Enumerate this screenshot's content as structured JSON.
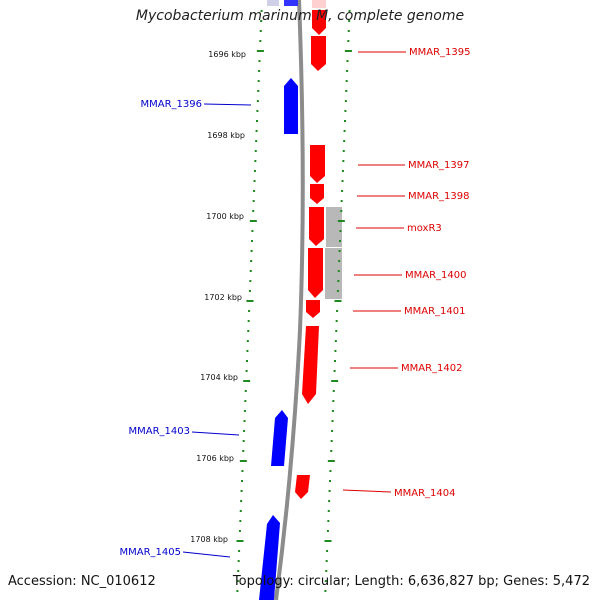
{
  "title": "Mycobacterium marinum M, complete genome",
  "footer": {
    "accession": "Accession: NC_010612",
    "summary": "Topology: circular; Length: 6,636,827 bp; Genes: 5,472"
  },
  "colors": {
    "forward_gene": "#ff0000",
    "reverse_gene": "#0000ff",
    "pseudo": "#b8b8b8",
    "backbone": "#8c8c8c",
    "ticks": "#1f8a1f"
  },
  "kbp_labels": [
    "1696 kbp",
    "1698 kbp",
    "1700 kbp",
    "1702 kbp",
    "1704 kbp",
    "1706 kbp",
    "1708 kbp"
  ],
  "forward_labels": [
    "MMAR_1395",
    "MMAR_1397",
    "MMAR_1398",
    "moxR3",
    "MMAR_1400",
    "MMAR_1401",
    "MMAR_1402",
    "MMAR_1404"
  ],
  "reverse_labels": [
    "MMAR_1396",
    "MMAR_1403",
    "MMAR_1405"
  ]
}
